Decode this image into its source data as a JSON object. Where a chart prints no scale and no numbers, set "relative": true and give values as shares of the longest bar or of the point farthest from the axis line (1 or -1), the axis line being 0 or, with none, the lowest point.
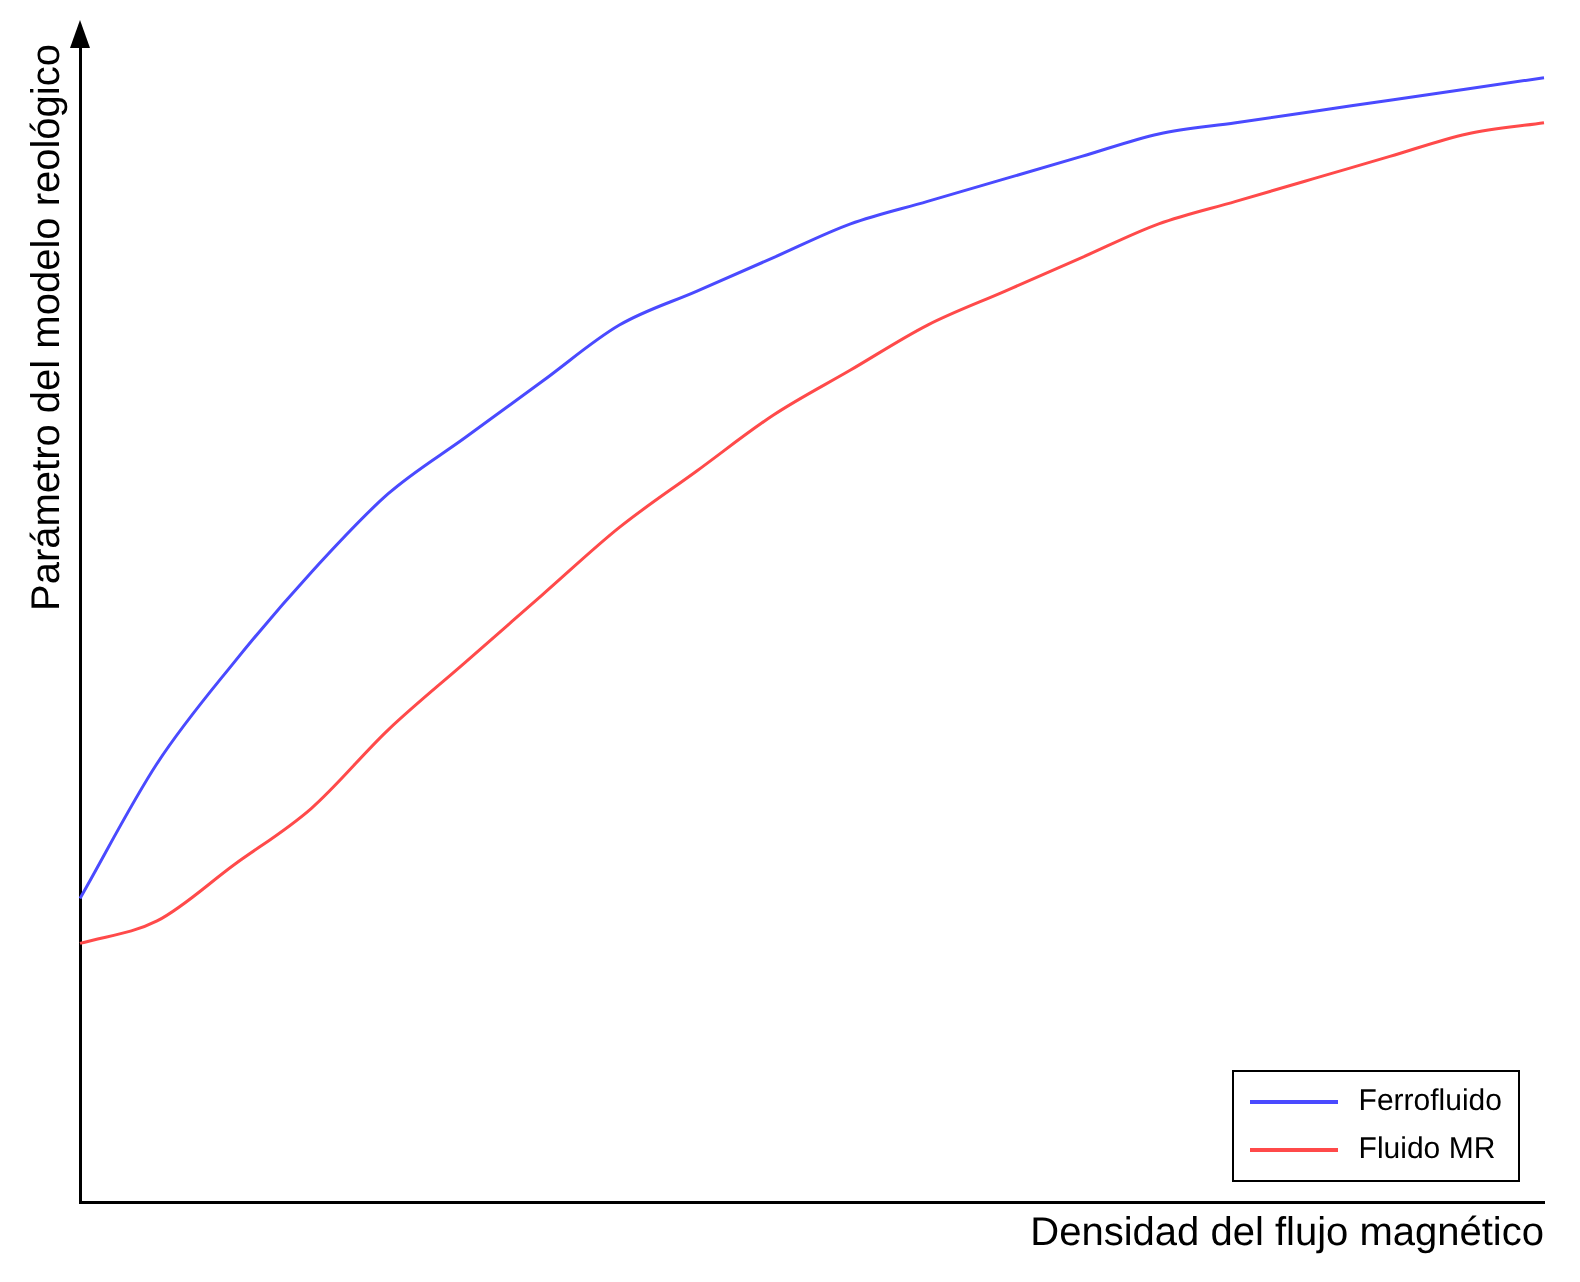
{
  "chart_data": {
    "type": "line",
    "relative": true,
    "xlabel": "Densidad del flujo magnético",
    "ylabel": "Parámetro del modelo reológico",
    "legend": "bottom right",
    "grid": false,
    "marker": "none",
    "line_style": "solid",
    "categories": [
      null,
      null,
      null,
      null,
      null,
      null,
      null,
      null,
      null,
      null,
      null,
      null,
      null,
      null,
      null,
      null,
      null,
      null,
      null,
      null
    ],
    "series": [
      {
        "name": "Ferrofluido",
        "color": "#4a4aff",
        "values": [
          0.27,
          0.39,
          0.48,
          0.56,
          0.63,
          0.68,
          0.73,
          0.78,
          0.81,
          0.84,
          0.87,
          0.89,
          0.91,
          0.93,
          0.95,
          0.96,
          0.97,
          0.98,
          0.99,
          1
        ]
      },
      {
        "name": "Fluido MR",
        "color": "#ff4a4a",
        "values": [
          0.23,
          0.25,
          0.3,
          0.35,
          0.42,
          0.48,
          0.54,
          0.6,
          0.65,
          0.7,
          0.74,
          0.78,
          0.81,
          0.84,
          0.87,
          0.89,
          0.91,
          0.93,
          0.95,
          0.96
        ]
      }
    ]
  }
}
